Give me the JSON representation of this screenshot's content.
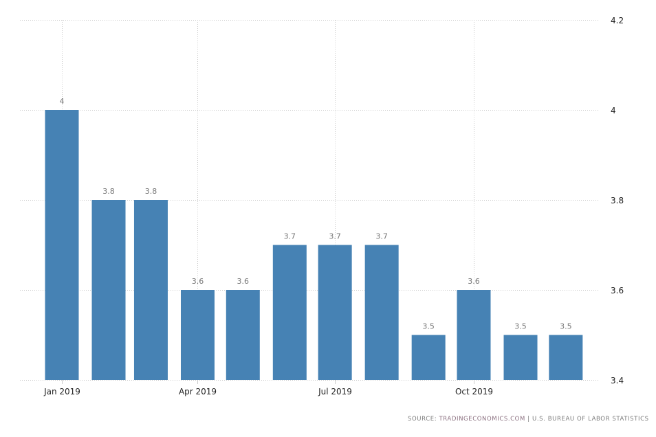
{
  "chart_data": {
    "type": "bar",
    "title": "",
    "xlabel": "",
    "ylabel": "",
    "dates": [
      "2019-01-01",
      "2019-02-01",
      "2019-03-01",
      "2019-04-01",
      "2019-05-01",
      "2019-06-01",
      "2019-07-01",
      "2019-08-01",
      "2019-09-01",
      "2019-10-01",
      "2019-11-01",
      "2019-12-01"
    ],
    "values": [
      4,
      3.8,
      3.8,
      3.6,
      3.6,
      3.7,
      3.7,
      3.7,
      3.5,
      3.6,
      3.5,
      3.5
    ],
    "data_labels": [
      "4",
      "3.8",
      "3.8",
      "3.6",
      "3.6",
      "3.7",
      "3.7",
      "3.7",
      "3.5",
      "3.6",
      "3.5",
      "3.5"
    ],
    "ylim": [
      3.4,
      4.2
    ],
    "y_ticks": [
      "3.4",
      "3.6",
      "3.8",
      "4",
      "4.2"
    ],
    "x_ticks": [
      {
        "date": "2019-01-01",
        "label": "Jan 2019"
      },
      {
        "date": "2019-04-01",
        "label": "Apr 2019"
      },
      {
        "date": "2019-07-01",
        "label": "Jul 2019"
      },
      {
        "date": "2019-10-01",
        "label": "Oct 2019"
      }
    ],
    "grid": true,
    "y_axis_position": "right",
    "bar_color": "#4682b4"
  },
  "source": {
    "prefix": "SOURCE: ",
    "site": "TRADINGECONOMICS.COM",
    "separator": " | ",
    "agency": "U.S. BUREAU OF LABOR STATISTICS"
  }
}
